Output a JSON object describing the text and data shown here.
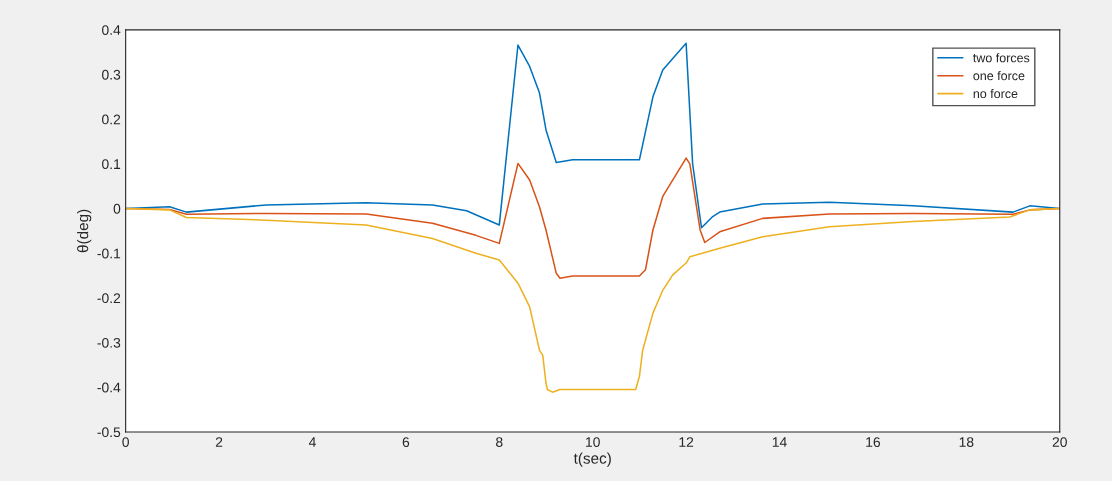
{
  "chart_data": {
    "type": "line",
    "xlabel": "t(sec)",
    "ylabel": "θ(deg)",
    "xlim": [
      0,
      20
    ],
    "xticks": [
      0,
      2,
      4,
      6,
      8,
      10,
      12,
      14,
      16,
      18,
      20
    ],
    "ylim": [
      -0.5,
      0.4
    ],
    "yticks": [
      -0.5,
      -0.4,
      -0.3,
      -0.2,
      -0.1,
      0,
      0.1,
      0.2,
      0.3,
      0.4
    ],
    "grid": false,
    "legend": "top right",
    "marker": "none",
    "line_style": "solid",
    "series": [
      {
        "name": "two forces",
        "color": "#0072bd",
        "x": [
          0,
          0.94,
          1.3,
          3.01,
          5.15,
          6.57,
          7.3,
          8.0,
          8.4,
          8.65,
          8.86,
          9.0,
          9.22,
          9.57,
          11.0,
          11.29,
          11.5,
          12.0,
          12.14,
          12.33,
          12.57,
          12.72,
          13.64,
          15.07,
          16.86,
          19.0,
          19.36,
          20
        ],
        "values": [
          0,
          0.004,
          -0.008,
          0.008,
          0.013,
          0.008,
          -0.005,
          -0.037,
          0.366,
          0.318,
          0.259,
          0.176,
          0.103,
          0.109,
          0.109,
          0.25,
          0.31,
          0.37,
          0.1,
          -0.043,
          -0.018,
          -0.008,
          0.01,
          0.014,
          0.006,
          -0.008,
          0.006,
          0
        ]
      },
      {
        "name": "one force",
        "color": "#d95319",
        "x": [
          0,
          0.94,
          1.3,
          3.01,
          5.15,
          6.57,
          7.5,
          8.0,
          8.4,
          8.65,
          8.86,
          9.0,
          9.22,
          9.3,
          9.57,
          11.0,
          11.13,
          11.29,
          11.5,
          12.0,
          12.08,
          12.3,
          12.4,
          12.72,
          13.64,
          15.07,
          16.86,
          19.0,
          19.36,
          20
        ],
        "values": [
          0,
          -0.002,
          -0.013,
          -0.011,
          -0.012,
          -0.033,
          -0.06,
          -0.078,
          0.101,
          0.064,
          0.004,
          -0.048,
          -0.145,
          -0.156,
          -0.151,
          -0.151,
          -0.137,
          -0.048,
          0.027,
          0.113,
          0.1,
          -0.048,
          -0.076,
          -0.052,
          -0.022,
          -0.012,
          -0.011,
          -0.013,
          -0.003,
          0
        ]
      },
      {
        "name": "no force",
        "color": "#edb120",
        "x": [
          0,
          0.94,
          1.3,
          3.01,
          5.15,
          6.57,
          7.5,
          8.0,
          8.4,
          8.65,
          8.86,
          8.93,
          9.0,
          9.03,
          9.14,
          9.3,
          10.92,
          11.0,
          11.07,
          11.29,
          11.5,
          11.71,
          12.0,
          12.08,
          12.72,
          13.64,
          15.07,
          16.86,
          18.93,
          19.36,
          20
        ],
        "values": [
          0,
          -0.003,
          -0.02,
          -0.026,
          -0.037,
          -0.067,
          -0.1,
          -0.115,
          -0.167,
          -0.22,
          -0.317,
          -0.328,
          -0.391,
          -0.405,
          -0.411,
          -0.405,
          -0.405,
          -0.376,
          -0.317,
          -0.234,
          -0.183,
          -0.149,
          -0.122,
          -0.108,
          -0.089,
          -0.063,
          -0.041,
          -0.029,
          -0.019,
          -0.003,
          0
        ]
      }
    ]
  }
}
